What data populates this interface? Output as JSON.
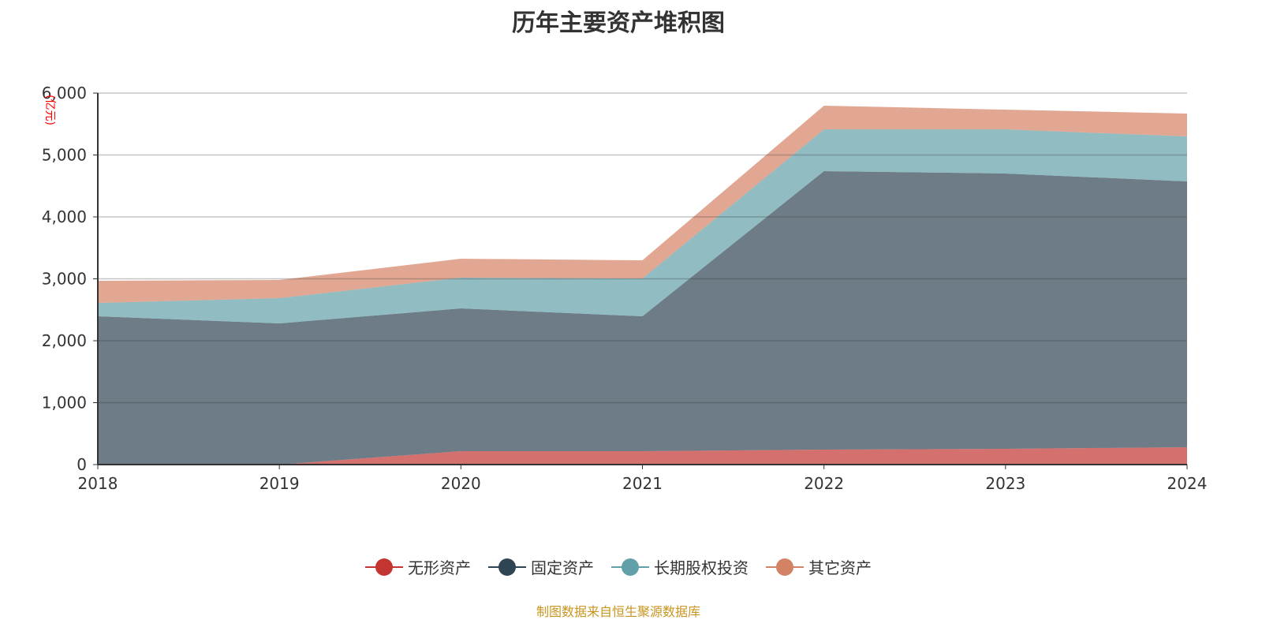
{
  "chart_data": {
    "type": "area",
    "stacked": true,
    "title": "历年主要资产堆积图",
    "ylabel": "(亿元)",
    "ylim": [
      0,
      6000
    ],
    "yticks": [
      "0",
      "1,000",
      "2,000",
      "3,000",
      "4,000",
      "5,000",
      "6,000"
    ],
    "categories": [
      "2018",
      "2019",
      "2020",
      "2021",
      "2022",
      "2023",
      "2024"
    ],
    "grid": true,
    "legend_position": "bottom",
    "series": [
      {
        "name": "无形资产",
        "color": "#c23531",
        "values": [
          0,
          0,
          217,
          217,
          242,
          255,
          280
        ]
      },
      {
        "name": "固定资产",
        "color": "#2f4554",
        "values": [
          2395,
          2280,
          2305,
          2178,
          4497,
          4446,
          4293
        ]
      },
      {
        "name": "长期股权投资",
        "color": "#61a0a8",
        "values": [
          216,
          408,
          497,
          611,
          675,
          713,
          726
        ]
      },
      {
        "name": "其它资产",
        "color": "#d48265",
        "values": [
          357,
          293,
          306,
          293,
          382,
          318,
          370
        ]
      }
    ]
  },
  "source": "制图数据来自恒生聚源数据库"
}
